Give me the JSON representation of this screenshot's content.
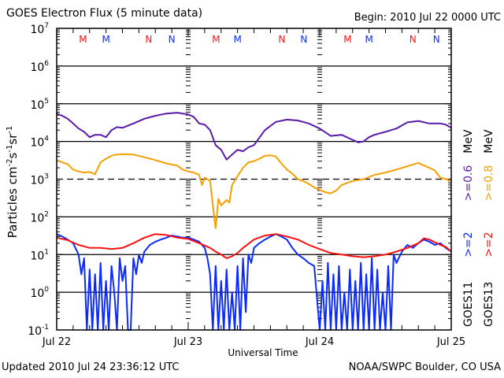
{
  "header": {
    "title": "GOES Electron Flux (5 minute data)",
    "begin": "Begin: 2010 Jul 22 0000 UTC"
  },
  "footer": {
    "updated": "Updated 2010 Jul 24 23:36:12 UTC",
    "credit": "NOAA/SWPC Boulder, CO USA"
  },
  "legend": {
    "goes11": "GOES11",
    "goes13": "GOES13",
    "goes11_ge2": ">=2",
    "goes13_ge2": ">=2",
    "goes11_ge06": ">=0.6",
    "goes13_ge08": ">=0.8",
    "mev1": "MeV",
    "mev2": "MeV"
  },
  "chart_data": {
    "type": "line",
    "title": "GOES Electron Flux (5 minute data)",
    "xlabel": "Universal Time",
    "ylabel": "Particles cm^-2 s^-1 sr^-1",
    "yscale": "log",
    "ylim": [
      0.1,
      10000000
    ],
    "xlim_hours": [
      0,
      72
    ],
    "x_tick_labels": [
      "Jul 22",
      "Jul 23",
      "Jul 24",
      "Jul 25"
    ],
    "y_tick_labels": [
      {
        "base": "10",
        "exp": "7"
      },
      {
        "base": "10",
        "exp": "6"
      },
      {
        "base": "10",
        "exp": "5"
      },
      {
        "base": "10",
        "exp": "4"
      },
      {
        "base": "10",
        "exp": "3"
      },
      {
        "base": "10",
        "exp": "2"
      },
      {
        "base": "10",
        "exp": "1"
      },
      {
        "base": "10",
        "exp": "0"
      },
      {
        "base": "10",
        "exp": "-1"
      }
    ],
    "grid_decades": [
      6,
      5,
      4,
      2,
      1,
      0
    ],
    "threshold_dashed": 1000,
    "markers": [
      {
        "label": "M",
        "satellite": "GOES13",
        "hour": 4.8
      },
      {
        "label": "M",
        "satellite": "GOES11",
        "hour": 9.0
      },
      {
        "label": "N",
        "satellite": "GOES13",
        "hour": 16.8
      },
      {
        "label": "N",
        "satellite": "GOES11",
        "hour": 21.0
      },
      {
        "label": "M",
        "satellite": "GOES13",
        "hour": 29.1
      },
      {
        "label": "M",
        "satellite": "GOES11",
        "hour": 33.0
      },
      {
        "label": "N",
        "satellite": "GOES13",
        "hour": 41.1
      },
      {
        "label": "N",
        "satellite": "GOES11",
        "hour": 45.1
      },
      {
        "label": "M",
        "satellite": "GOES13",
        "hour": 53.1
      },
      {
        "label": "M",
        "satellite": "GOES11",
        "hour": 57.0
      },
      {
        "label": "N",
        "satellite": "GOES13",
        "hour": 65.0
      },
      {
        "label": "N",
        "satellite": "GOES11",
        "hour": 69.3
      }
    ],
    "series": [
      {
        "name": "GOES11 >=0.6 MeV",
        "color": "#5a1aa8",
        "x_hours": [
          0,
          1,
          2,
          3,
          4,
          5,
          6,
          7,
          8,
          9,
          10,
          11,
          12,
          14,
          16,
          18,
          20,
          22,
          23,
          24,
          25,
          26,
          27,
          28,
          29,
          30,
          31,
          32,
          33,
          34,
          35,
          36,
          38,
          40,
          42,
          44,
          46,
          48,
          50,
          52,
          54,
          55,
          56,
          57,
          58,
          60,
          62,
          64,
          66,
          68,
          70,
          71,
          72
        ],
        "values": [
          55000,
          48000,
          40000,
          30000,
          22000,
          18000,
          13000,
          15000,
          15000,
          13000,
          20000,
          24000,
          23000,
          30000,
          40000,
          48000,
          55000,
          58000,
          55000,
          52000,
          45000,
          30000,
          28000,
          20000,
          8000,
          6000,
          3300,
          4500,
          6000,
          5500,
          7000,
          8000,
          20000,
          33000,
          38000,
          36000,
          30000,
          22000,
          14000,
          15000,
          11000,
          9500,
          10000,
          13000,
          15000,
          18000,
          22000,
          32000,
          35000,
          30000,
          30000,
          28000,
          23000
        ]
      },
      {
        "name": "GOES13 >=0.8 MeV",
        "color": "#f5a000",
        "x_hours": [
          0,
          1,
          2,
          3,
          4,
          5,
          6,
          7,
          8,
          9,
          10,
          11,
          12,
          14,
          16,
          18,
          20,
          22,
          23,
          24,
          25,
          26,
          26.5,
          27,
          28,
          28.5,
          29,
          29.5,
          30,
          31,
          31.5,
          32,
          33,
          34,
          35,
          36,
          37,
          38,
          39,
          40,
          41,
          42,
          43,
          44,
          45,
          46,
          47,
          48,
          49,
          50,
          51,
          52,
          54,
          56,
          58,
          60,
          62,
          64,
          66,
          67,
          68,
          69,
          70,
          71,
          72
        ],
        "values": [
          3200,
          2800,
          2500,
          1800,
          1600,
          1500,
          1550,
          1350,
          2800,
          3500,
          4200,
          4500,
          4600,
          4500,
          3800,
          3200,
          2600,
          2300,
          1800,
          1600,
          1500,
          1300,
          700,
          1100,
          900,
          200,
          50,
          300,
          200,
          280,
          240,
          700,
          1200,
          2000,
          2800,
          3000,
          3500,
          4200,
          4300,
          4000,
          2600,
          1800,
          1400,
          1000,
          900,
          750,
          600,
          520,
          450,
          420,
          500,
          700,
          900,
          1000,
          1300,
          1500,
          1800,
          2200,
          2700,
          2300,
          2000,
          1700,
          1100,
          1000,
          900
        ]
      },
      {
        "name": "GOES11 >=2 MeV",
        "color": "#0a2aff",
        "x_hours": [
          0,
          1,
          2,
          3,
          4,
          4.5,
          5,
          5.5,
          6,
          6.5,
          7,
          7.5,
          8,
          8.5,
          9,
          9.5,
          10,
          10.5,
          11,
          11.5,
          12,
          12.5,
          13,
          13.5,
          14,
          14.5,
          15,
          15.5,
          16,
          17,
          18,
          19,
          20,
          21,
          22,
          23,
          24,
          25,
          26,
          27,
          27.5,
          28,
          28.5,
          29,
          29.5,
          30,
          30.5,
          31,
          31.5,
          32,
          32.5,
          33,
          33.5,
          34,
          34.5,
          35,
          35.5,
          36,
          37,
          38,
          39,
          40,
          41,
          42,
          43,
          44,
          45,
          46,
          47,
          48,
          48.5,
          49,
          49.5,
          50,
          50.5,
          51,
          51.5,
          52,
          52.5,
          53,
          53.5,
          54,
          54.5,
          55,
          55.5,
          56,
          56.5,
          57,
          57.5,
          58,
          58.5,
          59,
          59.5,
          60,
          60.5,
          61,
          61.5,
          62,
          63,
          64,
          65,
          66,
          67,
          68,
          69,
          70,
          71,
          72
        ],
        "values": [
          35,
          30,
          25,
          20,
          10,
          3,
          8,
          0.1,
          4,
          0.1,
          3,
          0.1,
          6,
          0.1,
          2,
          0.1,
          5,
          1,
          0.1,
          8,
          2,
          5,
          0.1,
          0.1,
          8,
          3,
          10,
          6,
          12,
          18,
          22,
          25,
          28,
          32,
          30,
          28,
          28,
          25,
          22,
          15,
          8,
          3,
          0.1,
          5,
          0.1,
          2,
          0.1,
          4,
          0.1,
          1,
          0.1,
          5,
          0.1,
          8,
          0.3,
          10,
          6,
          15,
          20,
          25,
          30,
          35,
          30,
          25,
          15,
          10,
          8,
          6,
          5,
          0.1,
          2,
          0.1,
          6,
          0.1,
          3,
          0.1,
          5,
          0.1,
          1,
          0.1,
          4,
          0.1,
          2,
          0.1,
          6,
          0.1,
          3,
          0.1,
          8,
          0.1,
          4,
          0.1,
          1,
          0.1,
          5,
          0.1,
          10,
          6,
          12,
          18,
          15,
          20,
          25,
          22,
          18,
          20,
          15,
          12
        ]
      },
      {
        "name": "GOES13 >=2 MeV",
        "color": "#ff1010",
        "x_hours": [
          0,
          2,
          4,
          6,
          8,
          10,
          12,
          14,
          16,
          18,
          20,
          22,
          24,
          26,
          28,
          29,
          30,
          31,
          32,
          33,
          34,
          36,
          38,
          40,
          42,
          44,
          46,
          48,
          50,
          52,
          54,
          56,
          58,
          60,
          62,
          64,
          66,
          67,
          68,
          70,
          71,
          72
        ],
        "values": [
          28,
          24,
          18,
          15,
          15,
          14,
          15,
          20,
          28,
          35,
          33,
          28,
          26,
          20,
          15,
          12,
          10,
          8,
          9,
          11,
          15,
          25,
          32,
          35,
          30,
          25,
          18,
          14,
          11,
          10,
          9,
          8.5,
          9,
          10,
          12,
          15,
          20,
          27,
          25,
          18,
          16,
          12
        ]
      }
    ]
  }
}
